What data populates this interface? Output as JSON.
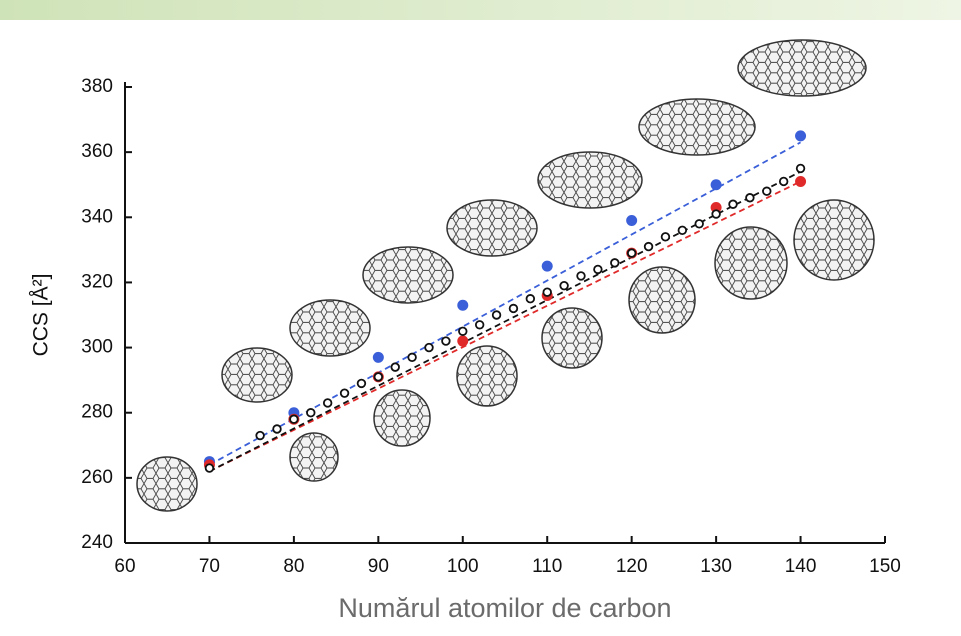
{
  "chart_data": {
    "type": "scatter",
    "xlabel": "Numărul atomilor de carbon",
    "ylabel": "CCS [Å²]",
    "xlim": [
      60,
      150
    ],
    "xticks": [
      60,
      70,
      80,
      90,
      100,
      110,
      120,
      130,
      140,
      150
    ],
    "ylim": [
      240,
      380
    ],
    "yticks": [
      240,
      260,
      280,
      300,
      320,
      340,
      360,
      380
    ],
    "series": [
      {
        "color": "#3a5fd8",
        "marker": "filled",
        "x": [
          70,
          80,
          90,
          100,
          110,
          120,
          130,
          140
        ],
        "values": [
          265,
          280,
          297,
          313,
          325,
          339,
          350,
          365
        ]
      },
      {
        "color": "#e02a2a",
        "marker": "filled",
        "x": [
          70,
          80,
          90,
          100,
          110,
          120,
          130,
          140
        ],
        "values": [
          264,
          278,
          291,
          302,
          316,
          329,
          343,
          351
        ]
      },
      {
        "color": "#111111",
        "marker": "open",
        "x": [
          70,
          76,
          78,
          80,
          82,
          84,
          86,
          88,
          90,
          92,
          94,
          96,
          98,
          100,
          102,
          104,
          106,
          108,
          110,
          112,
          114,
          116,
          118,
          120,
          122,
          124,
          126,
          128,
          130,
          132,
          134,
          136,
          138,
          140
        ],
        "values": [
          263,
          273,
          275,
          278,
          280,
          283,
          286,
          289,
          291,
          294,
          297,
          300,
          302,
          305,
          307,
          310,
          312,
          315,
          317,
          319,
          322,
          324,
          326,
          329,
          331,
          334,
          336,
          338,
          341,
          344,
          346,
          348,
          351,
          355
        ]
      }
    ],
    "fits": [
      {
        "color": "#3a5fd8",
        "x": [
          70,
          140
        ],
        "values": [
          264,
          363
        ]
      },
      {
        "color": "#e02a2a",
        "x": [
          70,
          140
        ],
        "values": [
          262,
          351
        ]
      },
      {
        "color": "#111111",
        "x": [
          70,
          140
        ],
        "values": [
          262,
          354
        ]
      }
    ]
  }
}
